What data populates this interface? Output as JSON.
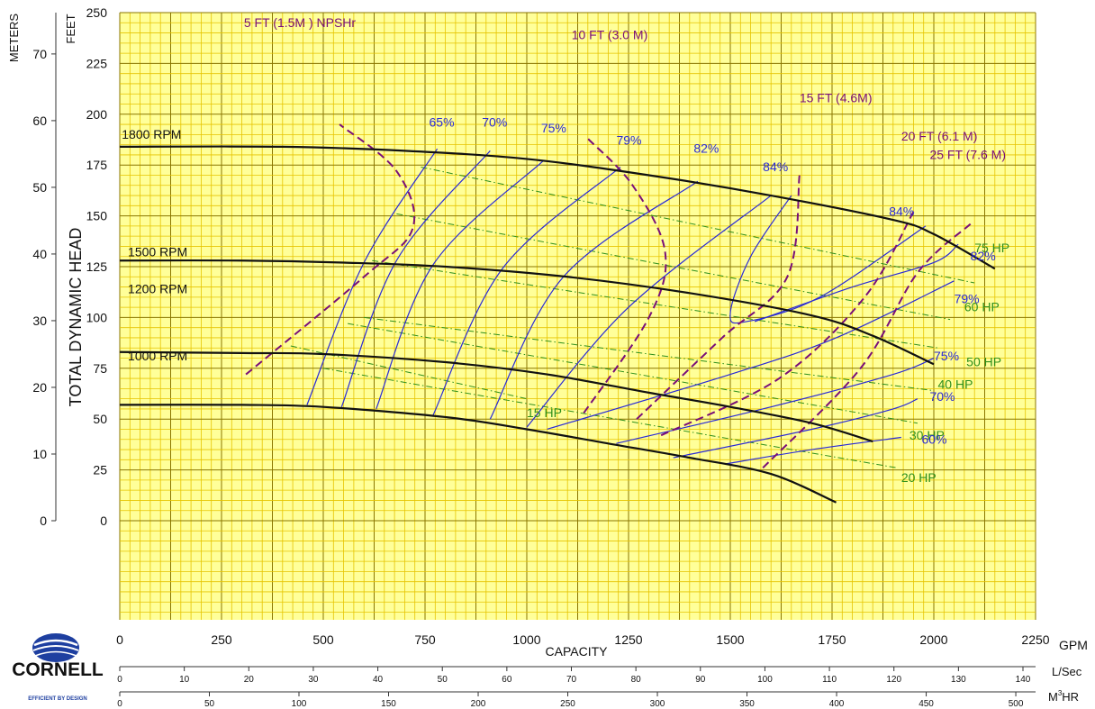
{
  "chart_data": {
    "type": "line",
    "title": "",
    "xlabel": "CAPACITY",
    "ylabel": "TOTAL DYNAMIC HEAD",
    "x_unit": "GPM",
    "y_unit_left": "FEET",
    "y_unit_meters": "METERS",
    "xlim": [
      0,
      2250
    ],
    "ylim": [
      0,
      250
    ],
    "grid": true,
    "x_ticks": [
      0,
      250,
      500,
      750,
      1000,
      1250,
      1500,
      1750,
      2000,
      2250
    ],
    "y_ticks": [
      0,
      25,
      50,
      75,
      100,
      125,
      150,
      175,
      200,
      225,
      250
    ],
    "meter_ticks": [
      0,
      10,
      20,
      30,
      40,
      50,
      60,
      70
    ],
    "lsec_label": "L/Sec",
    "lsec_ticks": [
      0,
      10,
      20,
      30,
      40,
      50,
      60,
      70,
      80,
      90,
      100,
      110,
      120,
      130,
      140
    ],
    "m3hr_label": "HR",
    "m3hr_prefix": "M",
    "m3hr_sup": "3",
    "m3hr_ticks": [
      0,
      50,
      100,
      150,
      200,
      250,
      300,
      350,
      400,
      450,
      500
    ],
    "logo_text": "CORNELL",
    "logo_tagline": "EFFICIENT BY DESIGN",
    "rpm_curves": [
      {
        "name": "1800 RPM",
        "label_at": [
          5,
          188
        ],
        "points": [
          [
            0,
            184
          ],
          [
            400,
            184
          ],
          [
            700,
            182
          ],
          [
            1000,
            178
          ],
          [
            1300,
            170
          ],
          [
            1600,
            160
          ],
          [
            1900,
            148
          ],
          [
            2000,
            141
          ],
          [
            2150,
            124
          ]
        ]
      },
      {
        "name": "1500 RPM",
        "label_at": [
          20,
          130
        ],
        "points": [
          [
            0,
            128
          ],
          [
            300,
            128
          ],
          [
            550,
            127
          ],
          [
            800,
            125
          ],
          [
            1100,
            120
          ],
          [
            1400,
            112
          ],
          [
            1700,
            101
          ],
          [
            1850,
            91
          ],
          [
            2000,
            77
          ]
        ]
      },
      {
        "name": "1200 RPM",
        "label_at": [
          20,
          112
        ],
        "points": [
          [
            0,
            83
          ],
          [
            300,
            82.5
          ],
          [
            500,
            82
          ],
          [
            800,
            78
          ],
          [
            1050,
            72
          ],
          [
            1300,
            63
          ],
          [
            1500,
            56
          ],
          [
            1700,
            48
          ],
          [
            1850,
            39
          ]
        ]
      },
      {
        "name": "1000 RPM",
        "label_at": [
          20,
          79
        ],
        "points": [
          [
            0,
            57
          ],
          [
            300,
            57
          ],
          [
            500,
            56
          ],
          [
            800,
            51
          ],
          [
            1000,
            45
          ],
          [
            1200,
            38
          ],
          [
            1400,
            31
          ],
          [
            1600,
            23
          ],
          [
            1760,
            9
          ]
        ]
      }
    ],
    "efficiency_lines": [
      {
        "label": "65%",
        "label_at": [
          760,
          194
        ],
        "points": [
          [
            460,
            57
          ],
          [
            600,
            127
          ],
          [
            780,
            183
          ]
        ]
      },
      {
        "name": "70% (upper)",
        "label": "70%",
        "label_at": [
          890,
          194
        ],
        "points": [
          [
            545,
            56
          ],
          [
            680,
            128
          ],
          [
            910,
            182
          ]
        ]
      },
      {
        "name": "75% (upper)",
        "label": "75%",
        "label_at": [
          1035,
          191
        ],
        "points": [
          [
            630,
            55
          ],
          [
            770,
            126
          ],
          [
            1040,
            177
          ]
        ]
      },
      {
        "name": "79% (upper)",
        "label": "79%",
        "label_at": [
          1220,
          185
        ],
        "points": [
          [
            770,
            52
          ],
          [
            940,
            124
          ],
          [
            1230,
            174
          ]
        ]
      },
      {
        "name": "82% (upper)",
        "label": "82%",
        "label_at": [
          1410,
          181
        ],
        "points": [
          [
            910,
            50
          ],
          [
            1090,
            120
          ],
          [
            1420,
            167
          ]
        ]
      },
      {
        "name": "84% (upper)",
        "label": "84%",
        "label_at": [
          1580,
          172
        ],
        "points": [
          [
            1000,
            46
          ],
          [
            1250,
            105
          ],
          [
            1600,
            160
          ]
        ]
      },
      {
        "name": "84% (loop)",
        "label": "84%",
        "label_at": [
          1890,
          150
        ],
        "points": [
          [
            1650,
            160
          ],
          [
            1550,
            130
          ],
          [
            1500,
            102
          ],
          [
            1540,
            98
          ],
          [
            1720,
            110
          ],
          [
            1980,
            145
          ]
        ]
      },
      {
        "name": "82% (right)",
        "label": "82%",
        "label_at": [
          2090,
          128
        ],
        "points": [
          [
            1560,
            98
          ],
          [
            1800,
            115
          ],
          [
            2000,
            127
          ],
          [
            2060,
            136
          ]
        ]
      },
      {
        "name": "79% (right)",
        "label": "79%",
        "label_at": [
          2050,
          107
        ],
        "points": [
          [
            1050,
            45
          ],
          [
            1500,
            72
          ],
          [
            1760,
            90
          ],
          [
            2050,
            118
          ]
        ]
      },
      {
        "name": "75% (right)",
        "label": "75%",
        "label_at": [
          2000,
          79
        ],
        "points": [
          [
            1220,
            38
          ],
          [
            1600,
            56
          ],
          [
            1900,
            72
          ],
          [
            2000,
            80
          ]
        ]
      },
      {
        "name": "70% (right)",
        "label": "70%",
        "label_at": [
          1990,
          59
        ],
        "points": [
          [
            1360,
            31
          ],
          [
            1700,
            45
          ],
          [
            1900,
            55
          ],
          [
            1960,
            60
          ]
        ]
      },
      {
        "name": "60% (right)",
        "label": "60%",
        "label_at": [
          1970,
          38
        ],
        "points": [
          [
            1490,
            28
          ],
          [
            1700,
            35
          ],
          [
            1920,
            41
          ]
        ]
      }
    ],
    "npshr_curves": [
      {
        "label": "5 FT (1.5M ) NPSHr",
        "label_at": [
          305,
          243
        ],
        "points": [
          [
            310,
            72
          ],
          [
            600,
            120
          ],
          [
            720,
            144
          ],
          [
            680,
            172
          ],
          [
            540,
            195
          ]
        ]
      },
      {
        "label": "10 FT (3.0 M)",
        "label_at": [
          1110,
          237
        ],
        "points": [
          [
            1140,
            53
          ],
          [
            1300,
            100
          ],
          [
            1340,
            132
          ],
          [
            1260,
            165
          ],
          [
            1150,
            188
          ]
        ]
      },
      {
        "label": "15 FT (4.6M)",
        "label_at": [
          1670,
          206
        ],
        "points": [
          [
            1270,
            50
          ],
          [
            1480,
            90
          ],
          [
            1640,
            120
          ],
          [
            1670,
            170
          ]
        ]
      },
      {
        "label": "20 FT (6.1 M)",
        "label_at": [
          1920,
          187
        ],
        "points": [
          [
            1330,
            42
          ],
          [
            1620,
            70
          ],
          [
            1830,
            110
          ],
          [
            1950,
            152
          ]
        ]
      },
      {
        "label": "25 FT (7.6 M)",
        "label_at": [
          1990,
          178
        ],
        "points": [
          [
            1580,
            26
          ],
          [
            1820,
            75
          ],
          [
            1960,
            122
          ],
          [
            2090,
            146
          ]
        ]
      }
    ],
    "hp_lines": [
      {
        "label": "75 HP",
        "label_at": [
          2100,
          132
        ],
        "points": [
          [
            740,
            174
          ],
          [
            2100,
            117
          ]
        ]
      },
      {
        "label": "60 HP",
        "label_at": [
          2075,
          103
        ],
        "points": [
          [
            680,
            151
          ],
          [
            2040,
            99
          ]
        ]
      },
      {
        "label": "50 HP",
        "label_at": [
          2080,
          76
        ],
        "points": [
          [
            620,
            128
          ],
          [
            2010,
            85
          ]
        ]
      },
      {
        "label": "40 HP",
        "label_at": [
          2010,
          65
        ],
        "points": [
          [
            600,
            100
          ],
          [
            2000,
            64
          ]
        ]
      },
      {
        "label": "30 HP",
        "label_at": [
          1940,
          40
        ],
        "points": [
          [
            560,
            97
          ],
          [
            1960,
            48
          ]
        ]
      },
      {
        "label": "20 HP",
        "label_at": [
          1920,
          19
        ],
        "points": [
          [
            500,
            75
          ],
          [
            1910,
            26
          ]
        ]
      },
      {
        "label": "15 HP",
        "label_at": [
          1000,
          51
        ],
        "points": [
          [
            420,
            86
          ],
          [
            1000,
            60
          ]
        ]
      }
    ]
  },
  "colors": {
    "grid_major": "#8a7600",
    "grid_minor": "#e6c400",
    "background": "#ffff99",
    "rpm": "#111111",
    "efficiency": "#2a2ad6",
    "npshr": "#7a0f78",
    "hp": "#2f8f1c",
    "logo_blue": "#1e3fa0"
  }
}
